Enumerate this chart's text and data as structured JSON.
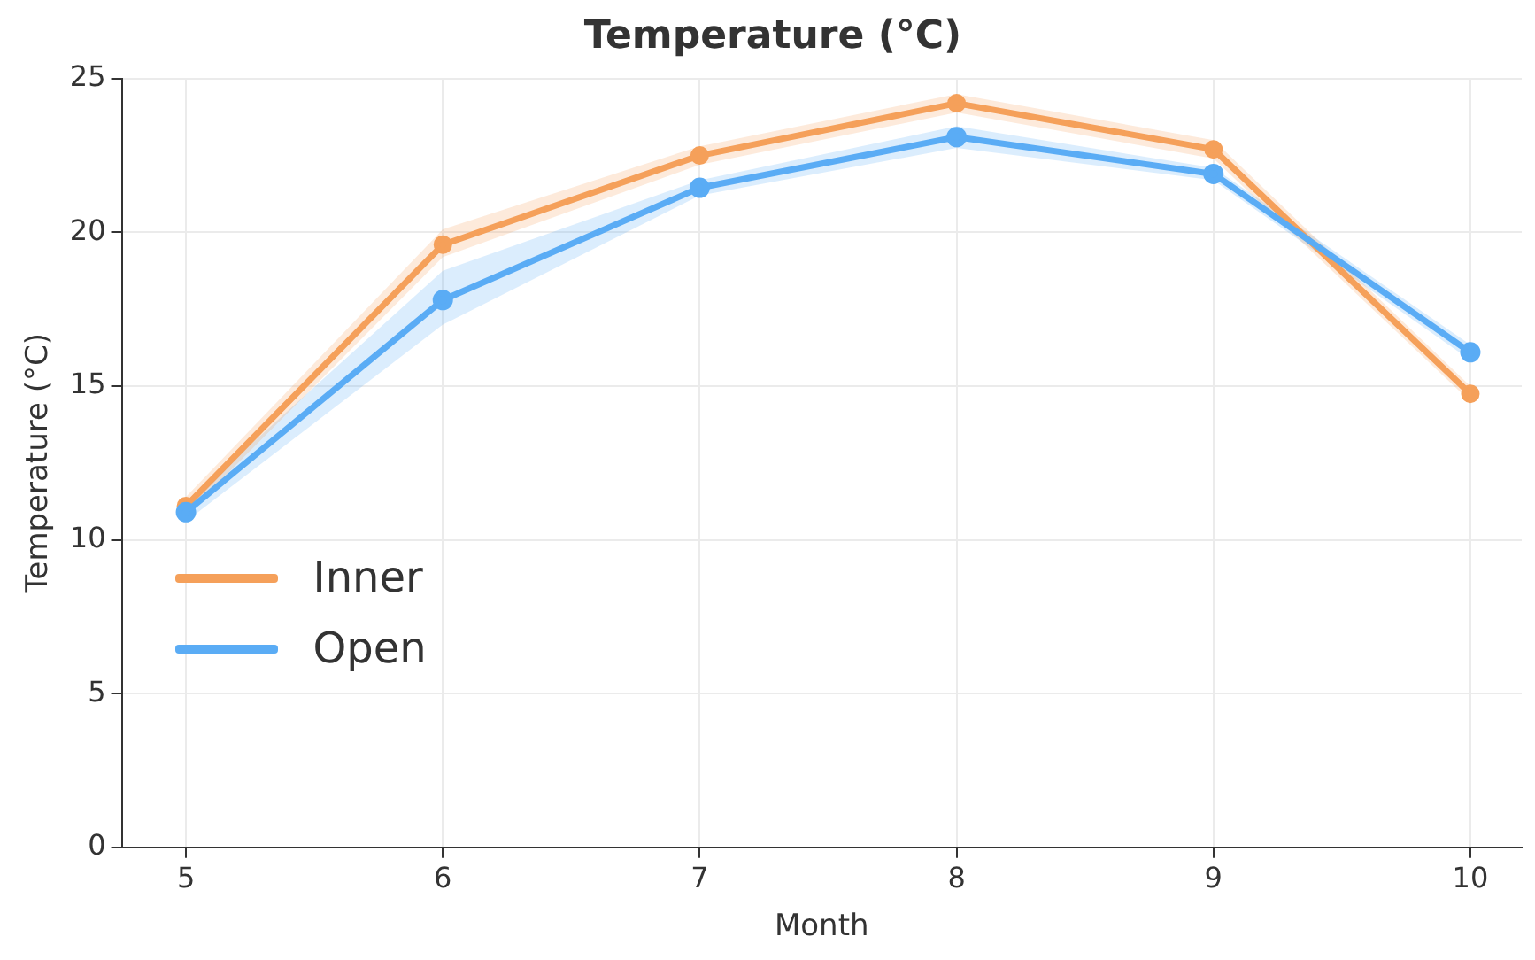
{
  "chart_data": {
    "type": "line",
    "title": "Temperature (°C)",
    "xlabel": "Month",
    "ylabel": "Temperature (°C)",
    "x": [
      5,
      6,
      7,
      8,
      9,
      10
    ],
    "series": [
      {
        "name": "Inner",
        "color": "#f5a05a",
        "values": [
          11.1,
          19.6,
          22.5,
          24.2,
          22.7,
          14.75
        ],
        "lower": [
          10.8,
          19.2,
          22.2,
          23.9,
          22.4,
          14.5
        ],
        "upper": [
          11.4,
          20.1,
          22.8,
          24.5,
          23.0,
          15.0
        ]
      },
      {
        "name": "Open",
        "color": "#5aacf5",
        "values": [
          10.9,
          17.8,
          21.45,
          23.1,
          21.9,
          16.1
        ],
        "lower": [
          10.6,
          17.0,
          21.2,
          22.75,
          21.7,
          15.85
        ],
        "upper": [
          11.2,
          18.75,
          21.7,
          23.45,
          22.1,
          16.35
        ]
      }
    ],
    "xlim": [
      4.75,
      10.2
    ],
    "xticks": [
      5,
      6,
      7,
      8,
      9,
      10
    ],
    "ylim": [
      0,
      25
    ],
    "yticks": [
      0,
      5,
      10,
      15,
      20,
      25
    ],
    "grid": true,
    "legend": "left",
    "marker": "circle",
    "line_style": "solid"
  }
}
